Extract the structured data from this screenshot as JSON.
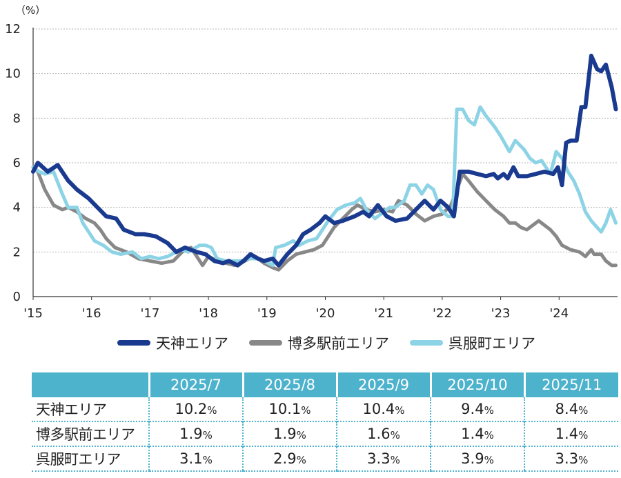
{
  "chart_data": {
    "type": "line",
    "unit_label": "（%）",
    "ylim": [
      0,
      12
    ],
    "yticks": [
      "0",
      "2",
      "4",
      "6",
      "8",
      "10",
      "12"
    ],
    "x_range": [
      2015.0,
      2025.0
    ],
    "year_ticks": [
      {
        "x": 2015,
        "label": "'15"
      },
      {
        "x": 2016,
        "label": "'16"
      },
      {
        "x": 2017,
        "label": "'17"
      },
      {
        "x": 2018,
        "label": "'18"
      },
      {
        "x": 2019,
        "label": "'19"
      },
      {
        "x": 2020,
        "label": "'20"
      },
      {
        "x": 2021,
        "label": "'21"
      },
      {
        "x": 2022,
        "label": "'22"
      },
      {
        "x": 2023,
        "label": "'23"
      },
      {
        "x": 2024,
        "label": "'24"
      }
    ],
    "grid": "horizontal dotted",
    "legend_position": "bottom",
    "series": [
      {
        "name": "天神エリア",
        "color": "#1a3a8f",
        "points": [
          [
            2015.0,
            5.6
          ],
          [
            2015.08,
            6.0
          ],
          [
            2015.25,
            5.6
          ],
          [
            2015.42,
            5.9
          ],
          [
            2015.6,
            5.2
          ],
          [
            2015.75,
            4.8
          ],
          [
            2015.95,
            4.4
          ],
          [
            2016.1,
            4.0
          ],
          [
            2016.25,
            3.6
          ],
          [
            2016.42,
            3.5
          ],
          [
            2016.55,
            3.0
          ],
          [
            2016.75,
            2.8
          ],
          [
            2016.9,
            2.8
          ],
          [
            2017.1,
            2.7
          ],
          [
            2017.3,
            2.4
          ],
          [
            2017.45,
            2.0
          ],
          [
            2017.6,
            2.2
          ],
          [
            2017.8,
            2.0
          ],
          [
            2017.95,
            1.9
          ],
          [
            2018.1,
            1.6
          ],
          [
            2018.25,
            1.5
          ],
          [
            2018.35,
            1.6
          ],
          [
            2018.5,
            1.4
          ],
          [
            2018.6,
            1.6
          ],
          [
            2018.72,
            1.9
          ],
          [
            2018.85,
            1.7
          ],
          [
            2018.95,
            1.6
          ],
          [
            2019.1,
            1.7
          ],
          [
            2019.2,
            1.4
          ],
          [
            2019.35,
            1.9
          ],
          [
            2019.5,
            2.3
          ],
          [
            2019.62,
            2.8
          ],
          [
            2019.75,
            3.0
          ],
          [
            2019.9,
            3.3
          ],
          [
            2020.0,
            3.6
          ],
          [
            2020.15,
            3.3
          ],
          [
            2020.3,
            3.4
          ],
          [
            2020.5,
            3.6
          ],
          [
            2020.65,
            3.8
          ],
          [
            2020.75,
            3.6
          ],
          [
            2020.9,
            4.1
          ],
          [
            2021.05,
            3.6
          ],
          [
            2021.2,
            3.4
          ],
          [
            2021.4,
            3.5
          ],
          [
            2021.55,
            3.9
          ],
          [
            2021.7,
            4.3
          ],
          [
            2021.85,
            3.9
          ],
          [
            2021.97,
            4.3
          ],
          [
            2022.1,
            4.0
          ],
          [
            2022.2,
            3.6
          ],
          [
            2022.3,
            5.6
          ],
          [
            2022.45,
            5.6
          ],
          [
            2022.6,
            5.5
          ],
          [
            2022.75,
            5.4
          ],
          [
            2022.88,
            5.5
          ],
          [
            2022.95,
            5.3
          ],
          [
            2023.05,
            5.5
          ],
          [
            2023.12,
            5.3
          ],
          [
            2023.22,
            5.8
          ],
          [
            2023.3,
            5.4
          ],
          [
            2023.45,
            5.4
          ],
          [
            2023.6,
            5.5
          ],
          [
            2023.75,
            5.6
          ],
          [
            2023.9,
            5.5
          ],
          [
            2023.98,
            5.8
          ],
          [
            2024.05,
            5.0
          ],
          [
            2024.12,
            6.9
          ],
          [
            2024.2,
            7.0
          ],
          [
            2024.3,
            7.0
          ],
          [
            2024.38,
            8.5
          ],
          [
            2024.45,
            8.5
          ],
          [
            2024.55,
            10.8
          ],
          [
            2024.65,
            10.2
          ],
          [
            2024.72,
            10.1
          ],
          [
            2024.8,
            10.4
          ],
          [
            2024.9,
            9.4
          ],
          [
            2024.97,
            8.4
          ]
        ]
      },
      {
        "name": "博多駅前エリア",
        "color": "#888888",
        "points": [
          [
            2015.0,
            5.8
          ],
          [
            2015.08,
            5.6
          ],
          [
            2015.2,
            4.8
          ],
          [
            2015.35,
            4.1
          ],
          [
            2015.5,
            3.9
          ],
          [
            2015.6,
            4.0
          ],
          [
            2015.75,
            3.8
          ],
          [
            2015.9,
            3.5
          ],
          [
            2016.05,
            3.3
          ],
          [
            2016.15,
            3.0
          ],
          [
            2016.25,
            2.6
          ],
          [
            2016.4,
            2.2
          ],
          [
            2016.6,
            2.0
          ],
          [
            2016.8,
            1.7
          ],
          [
            2017.0,
            1.6
          ],
          [
            2017.2,
            1.5
          ],
          [
            2017.4,
            1.6
          ],
          [
            2017.55,
            2.0
          ],
          [
            2017.7,
            2.2
          ],
          [
            2017.8,
            1.8
          ],
          [
            2017.9,
            1.4
          ],
          [
            2018.0,
            1.8
          ],
          [
            2018.15,
            1.6
          ],
          [
            2018.3,
            1.5
          ],
          [
            2018.45,
            1.4
          ],
          [
            2018.55,
            1.5
          ],
          [
            2018.7,
            1.7
          ],
          [
            2018.85,
            1.7
          ],
          [
            2018.95,
            1.5
          ],
          [
            2019.1,
            1.3
          ],
          [
            2019.2,
            1.2
          ],
          [
            2019.35,
            1.6
          ],
          [
            2019.5,
            1.9
          ],
          [
            2019.65,
            2.0
          ],
          [
            2019.8,
            2.1
          ],
          [
            2019.95,
            2.3
          ],
          [
            2020.05,
            2.7
          ],
          [
            2020.15,
            3.1
          ],
          [
            2020.3,
            3.5
          ],
          [
            2020.45,
            3.9
          ],
          [
            2020.55,
            4.1
          ],
          [
            2020.7,
            3.9
          ],
          [
            2020.85,
            3.8
          ],
          [
            2021.0,
            3.9
          ],
          [
            2021.15,
            3.8
          ],
          [
            2021.25,
            4.3
          ],
          [
            2021.4,
            4.1
          ],
          [
            2021.55,
            3.7
          ],
          [
            2021.7,
            3.4
          ],
          [
            2021.85,
            3.6
          ],
          [
            2022.0,
            3.7
          ],
          [
            2022.15,
            4.1
          ],
          [
            2022.28,
            5.0
          ],
          [
            2022.35,
            5.5
          ],
          [
            2022.45,
            5.2
          ],
          [
            2022.6,
            4.7
          ],
          [
            2022.75,
            4.3
          ],
          [
            2022.9,
            3.9
          ],
          [
            2023.05,
            3.6
          ],
          [
            2023.15,
            3.3
          ],
          [
            2023.25,
            3.3
          ],
          [
            2023.35,
            3.1
          ],
          [
            2023.45,
            3.0
          ],
          [
            2023.55,
            3.2
          ],
          [
            2023.65,
            3.4
          ],
          [
            2023.75,
            3.2
          ],
          [
            2023.85,
            3.0
          ],
          [
            2023.95,
            2.7
          ],
          [
            2024.05,
            2.3
          ],
          [
            2024.2,
            2.1
          ],
          [
            2024.35,
            2.0
          ],
          [
            2024.45,
            1.8
          ],
          [
            2024.55,
            2.1
          ],
          [
            2024.6,
            1.9
          ],
          [
            2024.72,
            1.9
          ],
          [
            2024.8,
            1.6
          ],
          [
            2024.9,
            1.4
          ],
          [
            2024.97,
            1.4
          ]
        ]
      },
      {
        "name": "呉服町エリア",
        "color": "#8dd3e6",
        "points": [
          [
            2015.0,
            5.8
          ],
          [
            2015.1,
            5.6
          ],
          [
            2015.2,
            5.5
          ],
          [
            2015.35,
            5.6
          ],
          [
            2015.5,
            4.6
          ],
          [
            2015.6,
            4.0
          ],
          [
            2015.75,
            4.0
          ],
          [
            2015.85,
            3.3
          ],
          [
            2015.95,
            2.9
          ],
          [
            2016.05,
            2.5
          ],
          [
            2016.2,
            2.3
          ],
          [
            2016.35,
            2.0
          ],
          [
            2016.5,
            1.9
          ],
          [
            2016.7,
            2.0
          ],
          [
            2016.85,
            1.7
          ],
          [
            2017.0,
            1.8
          ],
          [
            2017.15,
            1.7
          ],
          [
            2017.3,
            1.8
          ],
          [
            2017.45,
            2.0
          ],
          [
            2017.55,
            2.1
          ],
          [
            2017.65,
            2.0
          ],
          [
            2017.85,
            2.3
          ],
          [
            2017.95,
            2.3
          ],
          [
            2018.05,
            2.2
          ],
          [
            2018.15,
            1.7
          ],
          [
            2018.3,
            1.6
          ],
          [
            2018.45,
            1.6
          ],
          [
            2018.55,
            1.6
          ],
          [
            2018.7,
            1.7
          ],
          [
            2018.85,
            1.7
          ],
          [
            2018.95,
            1.6
          ],
          [
            2019.1,
            1.4
          ],
          [
            2019.15,
            2.2
          ],
          [
            2019.3,
            2.3
          ],
          [
            2019.45,
            2.5
          ],
          [
            2019.55,
            2.3
          ],
          [
            2019.7,
            2.5
          ],
          [
            2019.85,
            2.6
          ],
          [
            2019.95,
            3.0
          ],
          [
            2020.05,
            3.4
          ],
          [
            2020.2,
            3.9
          ],
          [
            2020.35,
            4.1
          ],
          [
            2020.5,
            4.2
          ],
          [
            2020.6,
            4.4
          ],
          [
            2020.7,
            3.9
          ],
          [
            2020.85,
            3.5
          ],
          [
            2021.0,
            3.8
          ],
          [
            2021.1,
            4.0
          ],
          [
            2021.2,
            4.0
          ],
          [
            2021.35,
            4.3
          ],
          [
            2021.45,
            5.0
          ],
          [
            2021.55,
            5.0
          ],
          [
            2021.65,
            4.6
          ],
          [
            2021.75,
            5.0
          ],
          [
            2021.85,
            4.8
          ],
          [
            2021.97,
            3.9
          ],
          [
            2022.1,
            3.6
          ],
          [
            2022.18,
            3.6
          ],
          [
            2022.25,
            8.4
          ],
          [
            2022.35,
            8.4
          ],
          [
            2022.45,
            7.9
          ],
          [
            2022.55,
            7.7
          ],
          [
            2022.65,
            8.5
          ],
          [
            2022.75,
            8.1
          ],
          [
            2022.9,
            7.6
          ],
          [
            2023.0,
            7.2
          ],
          [
            2023.15,
            6.5
          ],
          [
            2023.25,
            7.0
          ],
          [
            2023.4,
            6.6
          ],
          [
            2023.5,
            6.2
          ],
          [
            2023.6,
            6.0
          ],
          [
            2023.7,
            6.1
          ],
          [
            2023.85,
            5.5
          ],
          [
            2023.95,
            6.5
          ],
          [
            2024.05,
            6.2
          ],
          [
            2024.15,
            5.6
          ],
          [
            2024.25,
            5.2
          ],
          [
            2024.35,
            4.6
          ],
          [
            2024.45,
            3.8
          ],
          [
            2024.55,
            3.4
          ],
          [
            2024.65,
            3.1
          ],
          [
            2024.72,
            2.9
          ],
          [
            2024.8,
            3.3
          ],
          [
            2024.88,
            3.9
          ],
          [
            2024.97,
            3.3
          ]
        ]
      }
    ]
  },
  "table": {
    "corner": "",
    "columns": [
      "2025/7",
      "2025/8",
      "2025/9",
      "2025/10",
      "2025/11"
    ],
    "percent_suffix": "%",
    "rows": [
      {
        "label": "天神エリア",
        "values": [
          "10.2",
          "10.1",
          "10.4",
          "9.4",
          "8.4"
        ]
      },
      {
        "label": "博多駅前エリア",
        "values": [
          "1.9",
          "1.9",
          "1.6",
          "1.4",
          "1.4"
        ]
      },
      {
        "label": "呉服町エリア",
        "values": [
          "3.1",
          "2.9",
          "3.3",
          "3.9",
          "3.3"
        ]
      }
    ]
  }
}
